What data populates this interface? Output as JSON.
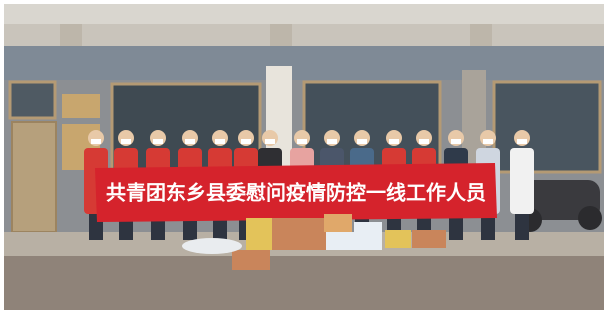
{
  "photo": {
    "banner": {
      "text": "共青团东乡县委慰问疫情防控一线工作人员"
    }
  }
}
